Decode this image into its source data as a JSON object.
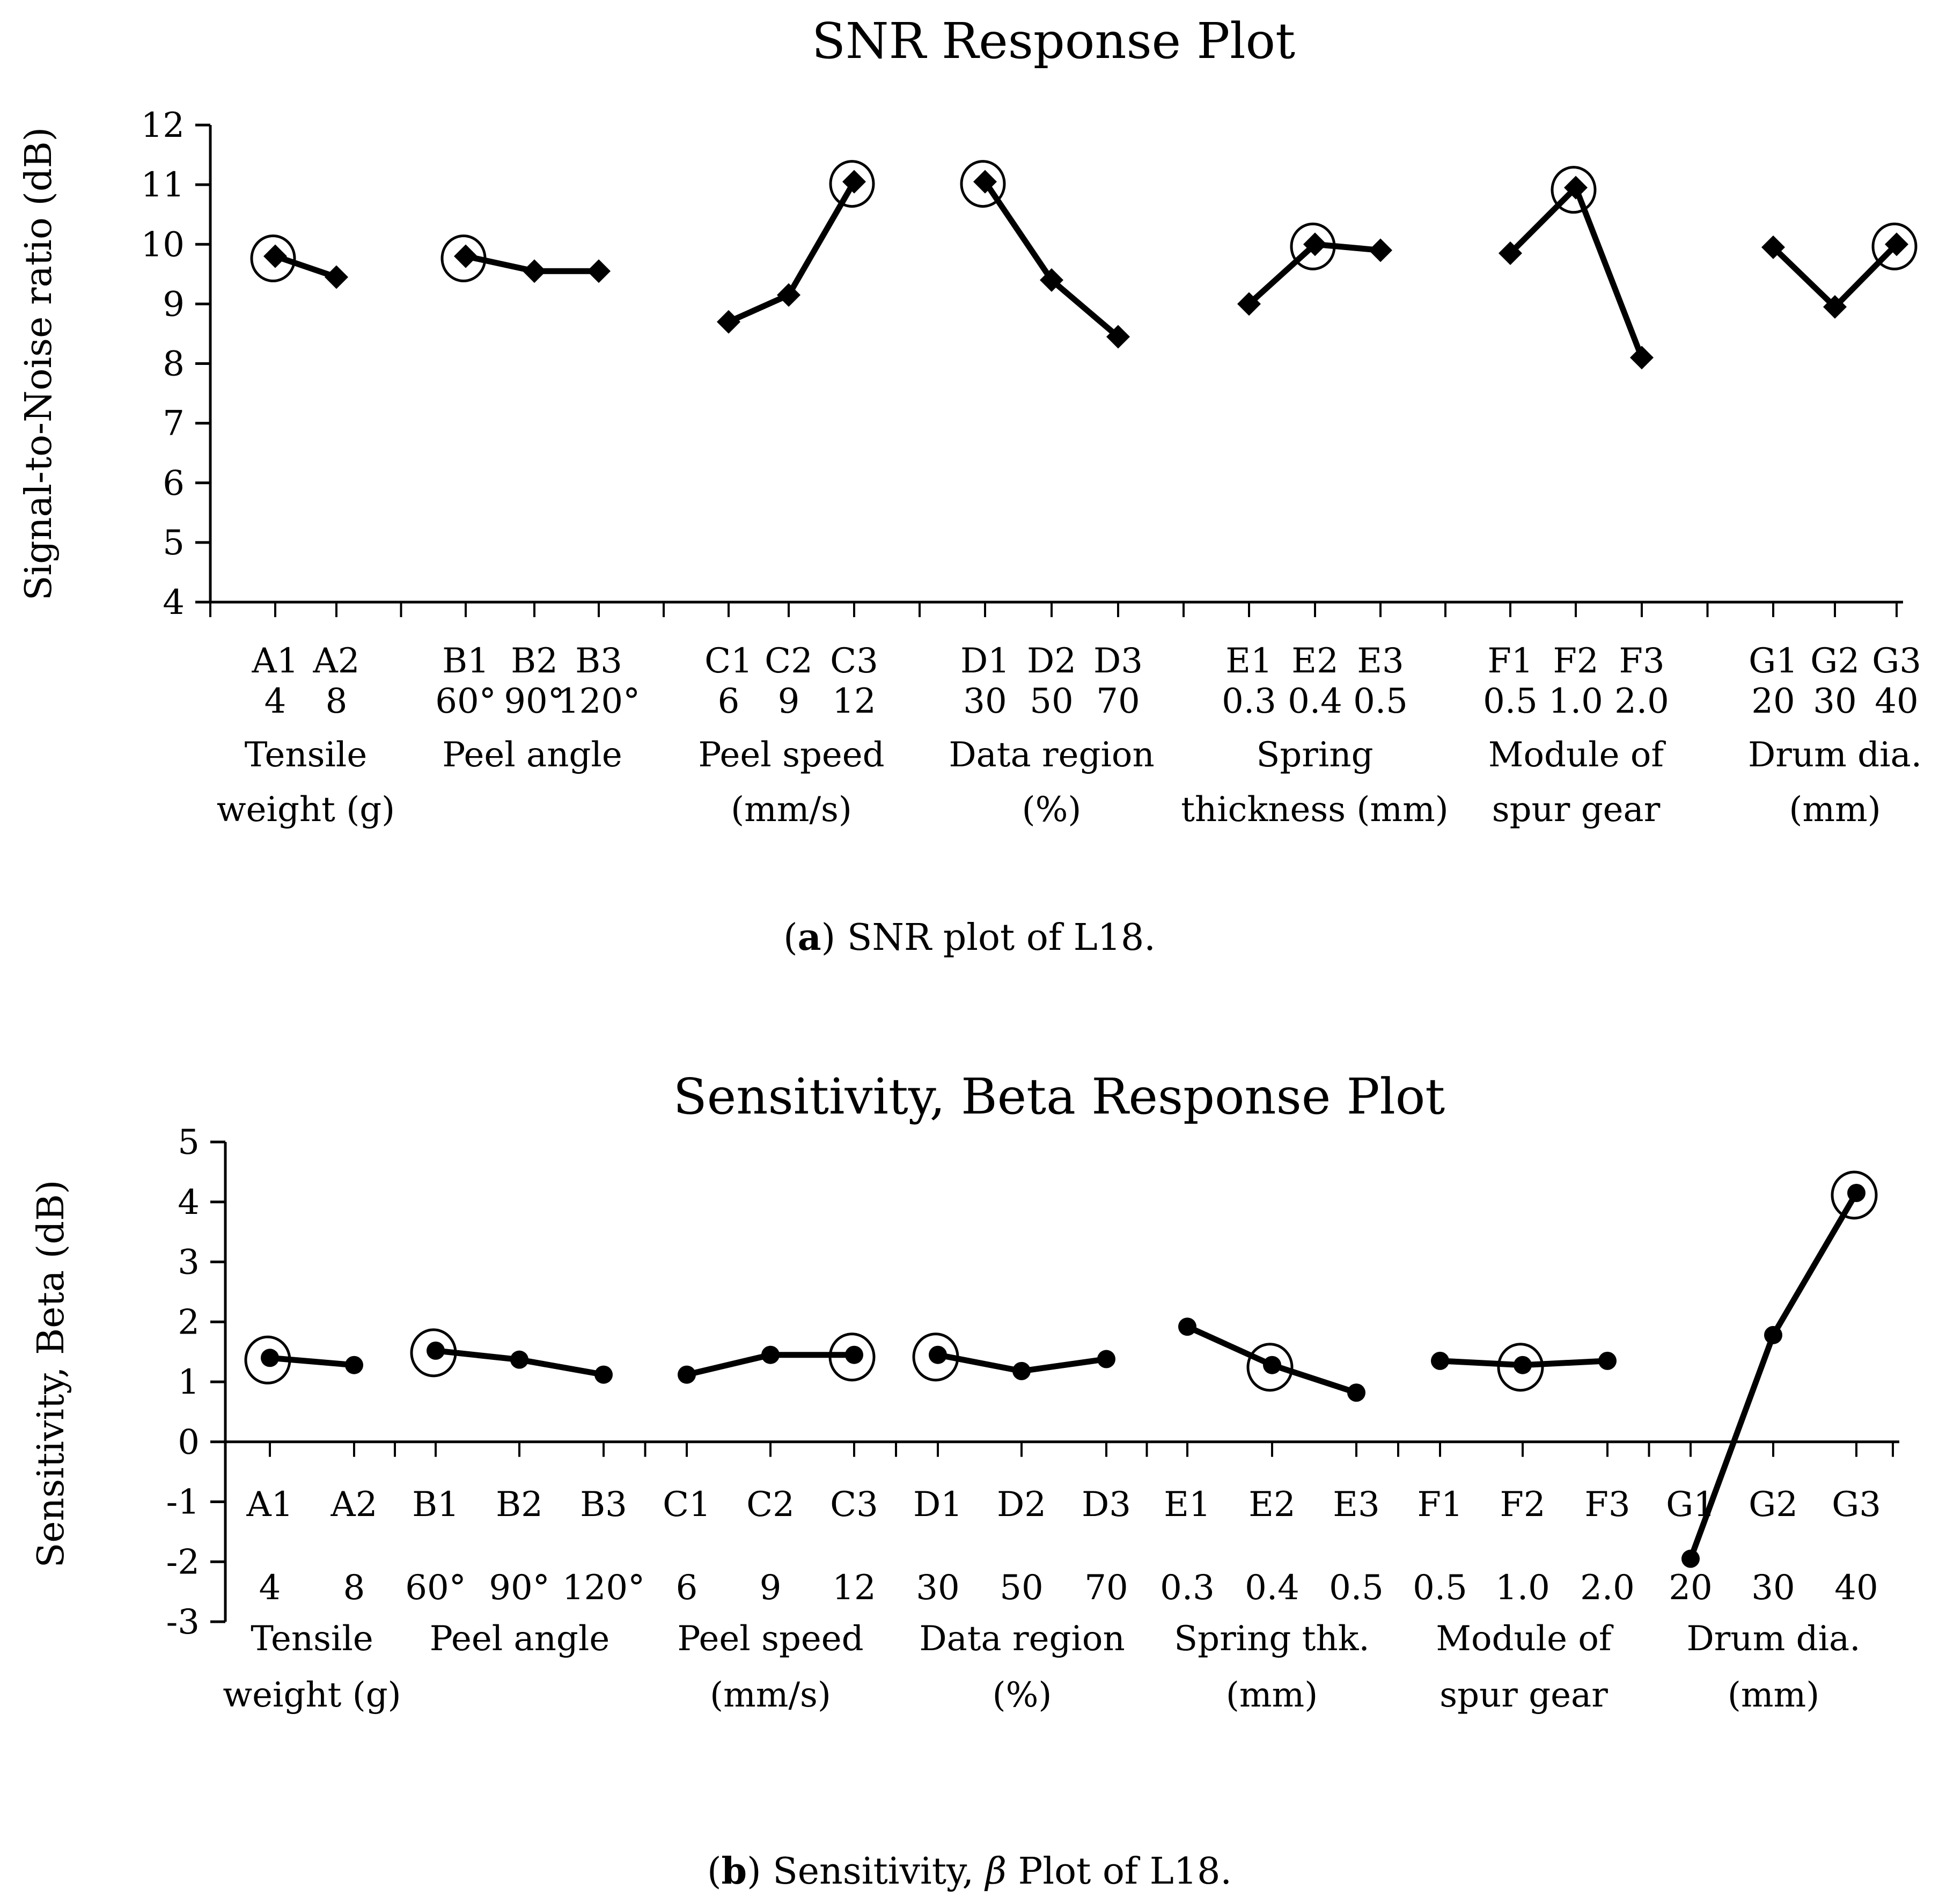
{
  "chart_data": [
    {
      "type": "line",
      "title": "SNR Response Plot",
      "ylabel": "Signal-to-Noise ratio  (dB)",
      "xlabel": "",
      "ylim": [
        4,
        12
      ],
      "yticks": [
        "4",
        "5",
        "6",
        "7",
        "8",
        "9",
        "10",
        "11",
        "12"
      ],
      "marker": "diamond",
      "caption_label": "a",
      "caption_rest": ") SNR plot of L18.",
      "factors": [
        {
          "codes": [
            "A1",
            "A2"
          ],
          "levels": [
            "4",
            "8"
          ],
          "name": [
            "Tensile",
            "weight (g)"
          ],
          "values": [
            9.8,
            9.45
          ],
          "optimal": 0
        },
        {
          "codes": [
            "B1",
            "B2",
            "B3"
          ],
          "levels": [
            "60°",
            "90°",
            "120°"
          ],
          "name": [
            "Peel angle",
            ""
          ],
          "values": [
            9.8,
            9.55,
            9.55
          ],
          "optimal": 0
        },
        {
          "codes": [
            "C1",
            "C2",
            "C3"
          ],
          "levels": [
            "6",
            "9",
            "12"
          ],
          "name": [
            "Peel speed",
            "(mm/s)"
          ],
          "values": [
            8.7,
            9.15,
            11.05
          ],
          "optimal": 2
        },
        {
          "codes": [
            "D1",
            "D2",
            "D3"
          ],
          "levels": [
            "30",
            "50",
            "70"
          ],
          "name": [
            "Data region",
            "(%)"
          ],
          "values": [
            11.05,
            9.4,
            8.45
          ],
          "optimal": 0
        },
        {
          "codes": [
            "E1",
            "E2",
            "E3"
          ],
          "levels": [
            "0.3",
            "0.4",
            "0.5"
          ],
          "name": [
            "Spring",
            "thickness (mm)"
          ],
          "values": [
            9.0,
            10.0,
            9.9
          ],
          "optimal": 1
        },
        {
          "codes": [
            "F1",
            "F2",
            "F3"
          ],
          "levels": [
            "0.5",
            "1.0",
            "2.0"
          ],
          "name": [
            "Module of",
            "spur  gear"
          ],
          "values": [
            9.85,
            10.95,
            8.1
          ],
          "optimal": 1
        },
        {
          "codes": [
            "G1",
            "G2",
            "G3"
          ],
          "levels": [
            "20",
            "30",
            "40"
          ],
          "name": [
            "Drum dia.",
            "(mm)"
          ],
          "values": [
            9.95,
            8.95,
            10.0
          ],
          "optimal": 2
        }
      ]
    },
    {
      "type": "line",
      "title": "Sensitivity, Beta Response Plot",
      "ylabel": "Sensitivity, Beta (dB)",
      "xlabel": "",
      "ylim": [
        -3,
        5
      ],
      "yticks": [
        "-3",
        "-2",
        "-1",
        "0",
        "1",
        "2",
        "3",
        "4",
        "5"
      ],
      "marker": "circle",
      "caption_label": "b",
      "caption_rest": ") Sensitivity, ",
      "caption_symbol": "β",
      "caption_end": " Plot of L18.",
      "factors": [
        {
          "codes": [
            "A1",
            "A2"
          ],
          "levels": [
            "4",
            "8"
          ],
          "name": [
            "Tensile",
            "weight (g)"
          ],
          "values": [
            1.4,
            1.28
          ],
          "optimal": 0
        },
        {
          "codes": [
            "B1",
            "B2",
            "B3"
          ],
          "levels": [
            "60°",
            "90°",
            "120°"
          ],
          "name": [
            "Peel angle",
            ""
          ],
          "values": [
            1.52,
            1.37,
            1.12
          ],
          "optimal": 0
        },
        {
          "codes": [
            "C1",
            "C2",
            "C3"
          ],
          "levels": [
            "6",
            "9",
            "12"
          ],
          "name": [
            "Peel speed",
            "(mm/s)"
          ],
          "values": [
            1.12,
            1.45,
            1.45
          ],
          "optimal": 2
        },
        {
          "codes": [
            "D1",
            "D2",
            "D3"
          ],
          "levels": [
            "30",
            "50",
            "70"
          ],
          "name": [
            "Data region",
            "(%)"
          ],
          "values": [
            1.45,
            1.18,
            1.38
          ],
          "optimal": 0
        },
        {
          "codes": [
            "E1",
            "E2",
            "E3"
          ],
          "levels": [
            "0.3",
            "0.4",
            "0.5"
          ],
          "name": [
            "Spring  thk.",
            "(mm)"
          ],
          "values": [
            1.92,
            1.28,
            0.82
          ],
          "optimal": 1
        },
        {
          "codes": [
            "F1",
            "F2",
            "F3"
          ],
          "levels": [
            "0.5",
            "1.0",
            "2.0"
          ],
          "name": [
            "Module of",
            "spur  gear"
          ],
          "values": [
            1.35,
            1.28,
            1.35
          ],
          "optimal": 1
        },
        {
          "codes": [
            "G1",
            "G2",
            "G3"
          ],
          "levels": [
            "20",
            "30",
            "40"
          ],
          "name": [
            "Drum dia.",
            "(mm)"
          ],
          "values": [
            -1.95,
            1.78,
            4.15
          ],
          "optimal": 2
        }
      ]
    }
  ]
}
